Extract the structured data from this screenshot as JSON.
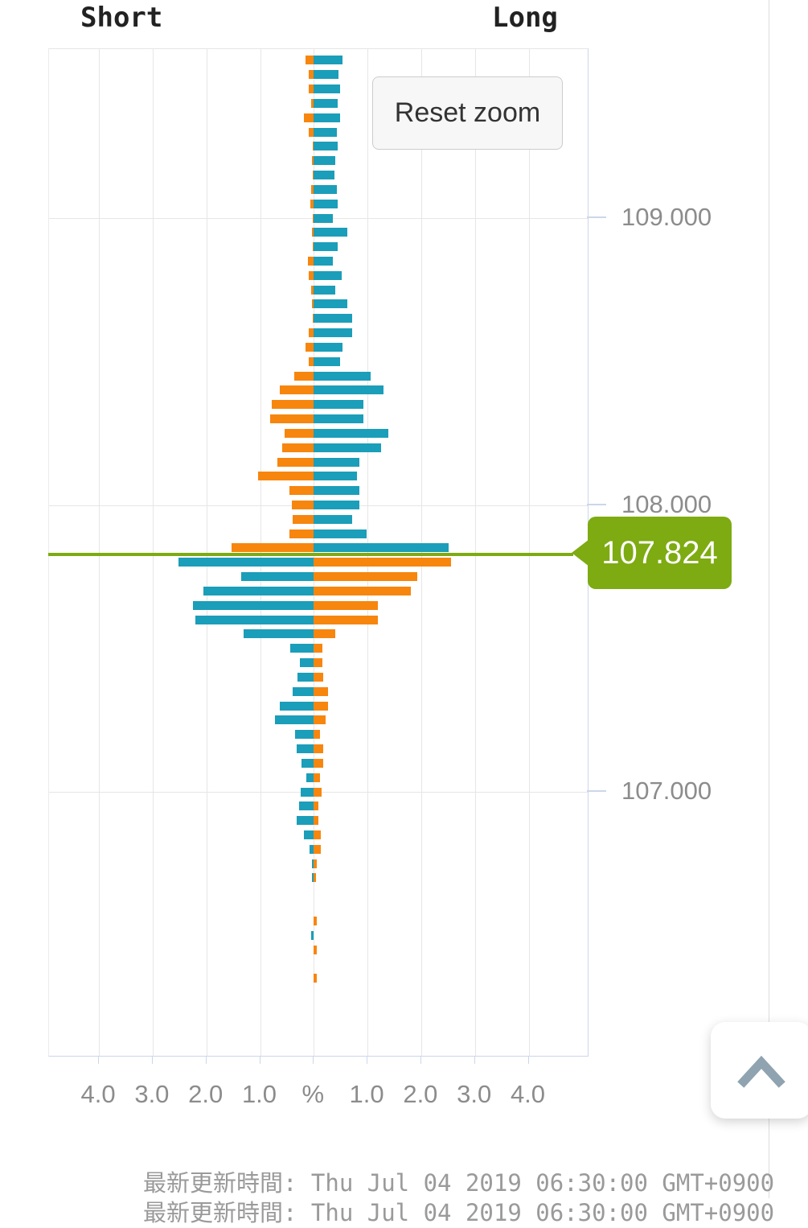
{
  "header": {
    "short_label": "Short",
    "long_label": "Long"
  },
  "buttons": {
    "reset_zoom": "Reset zoom"
  },
  "price_flag": {
    "value": "107.824"
  },
  "footer": {
    "updated_line": "最新更新時間: Thu Jul 04 2019 06:30:00 GMT+0900",
    "clipped_line": "最新更新時間: Thu Jul 04 2019 06:30:00 GMT+0900"
  },
  "colors": {
    "long_above_short_below": "#1b9eb9",
    "short_above_long_below": "#f7860e",
    "price_line_green": "#7dab11",
    "grid": "#e6e6e6",
    "axis_line": "#ccd6eb",
    "tick_label": "#8c8c8c",
    "heading_text": "#222222",
    "footer_text": "#9a9a9a",
    "button_bg": "#f7f7f7",
    "button_border": "#cccccc",
    "button_text": "#333333",
    "chevron": "#8fa3b0",
    "divider": "#dddddd",
    "flag_text": "#ffffff"
  },
  "chart_data": {
    "type": "bar",
    "orientation": "horizontal-pyramid",
    "title": "Open orders ratio (Short vs Long)",
    "current_price": 107.824,
    "x_axis": {
      "unit": "%",
      "tick_values": [
        -4,
        -3,
        -2,
        -1,
        0,
        1,
        2,
        3,
        4
      ],
      "tick_labels": [
        "4.0",
        "3.0",
        "2.0",
        "1.0",
        "%",
        "1.0",
        "2.0",
        "3.0",
        "4.0"
      ],
      "range": [
        -5,
        5
      ],
      "grid": true
    },
    "y_axis": {
      "unit": "price",
      "ticks": [
        {
          "price": 109.0,
          "label": "109.000"
        },
        {
          "price": 108.0,
          "label": "108.000"
        },
        {
          "price": 107.0,
          "label": "107.000"
        }
      ],
      "range": [
        106.3,
        109.6
      ],
      "bucket_size": 0.05,
      "grid": true
    },
    "legend": {
      "short_side": "left",
      "long_side": "right",
      "position": "top"
    },
    "buckets": [
      {
        "price": 109.55,
        "short": 0.15,
        "long": 0.54
      },
      {
        "price": 109.5,
        "short": 0.1,
        "long": 0.46
      },
      {
        "price": 109.45,
        "short": 0.1,
        "long": 0.49
      },
      {
        "price": 109.4,
        "short": 0.05,
        "long": 0.45
      },
      {
        "price": 109.35,
        "short": 0.18,
        "long": 0.49
      },
      {
        "price": 109.3,
        "short": 0.1,
        "long": 0.43
      },
      {
        "price": 109.25,
        "short": 0.02,
        "long": 0.45
      },
      {
        "price": 109.2,
        "short": 0.04,
        "long": 0.4
      },
      {
        "price": 109.15,
        "short": 0.02,
        "long": 0.38
      },
      {
        "price": 109.1,
        "short": 0.05,
        "long": 0.43
      },
      {
        "price": 109.05,
        "short": 0.07,
        "long": 0.45
      },
      {
        "price": 109.0,
        "short": 0.02,
        "long": 0.35
      },
      {
        "price": 108.95,
        "short": 0.03,
        "long": 0.62
      },
      {
        "price": 108.9,
        "short": 0.02,
        "long": 0.45
      },
      {
        "price": 108.85,
        "short": 0.11,
        "long": 0.35
      },
      {
        "price": 108.8,
        "short": 0.1,
        "long": 0.52
      },
      {
        "price": 108.75,
        "short": 0.05,
        "long": 0.4
      },
      {
        "price": 108.7,
        "short": 0.04,
        "long": 0.62
      },
      {
        "price": 108.65,
        "short": 0.02,
        "long": 0.71
      },
      {
        "price": 108.6,
        "short": 0.09,
        "long": 0.71
      },
      {
        "price": 108.55,
        "short": 0.16,
        "long": 0.53
      },
      {
        "price": 108.5,
        "short": 0.09,
        "long": 0.49
      },
      {
        "price": 108.45,
        "short": 0.37,
        "long": 1.06
      },
      {
        "price": 108.4,
        "short": 0.63,
        "long": 1.3
      },
      {
        "price": 108.35,
        "short": 0.78,
        "long": 0.93
      },
      {
        "price": 108.3,
        "short": 0.82,
        "long": 0.93
      },
      {
        "price": 108.25,
        "short": 0.54,
        "long": 1.39
      },
      {
        "price": 108.2,
        "short": 0.59,
        "long": 1.25
      },
      {
        "price": 108.15,
        "short": 0.68,
        "long": 0.85
      },
      {
        "price": 108.1,
        "short": 1.04,
        "long": 0.8
      },
      {
        "price": 108.05,
        "short": 0.45,
        "long": 0.85
      },
      {
        "price": 108.0,
        "short": 0.41,
        "long": 0.85
      },
      {
        "price": 107.95,
        "short": 0.4,
        "long": 0.71
      },
      {
        "price": 107.9,
        "short": 0.45,
        "long": 0.98
      },
      {
        "price": 107.85,
        "short": 1.53,
        "long": 2.51
      },
      {
        "price": 107.8,
        "short": 2.52,
        "long": 2.56
      },
      {
        "price": 107.75,
        "short": 1.35,
        "long": 1.92
      },
      {
        "price": 107.7,
        "short": 2.06,
        "long": 1.8
      },
      {
        "price": 107.65,
        "short": 2.25,
        "long": 1.2
      },
      {
        "price": 107.6,
        "short": 2.2,
        "long": 1.19
      },
      {
        "price": 107.55,
        "short": 1.3,
        "long": 0.4
      },
      {
        "price": 107.5,
        "short": 0.44,
        "long": 0.16
      },
      {
        "price": 107.45,
        "short": 0.26,
        "long": 0.16
      },
      {
        "price": 107.4,
        "short": 0.31,
        "long": 0.17
      },
      {
        "price": 107.35,
        "short": 0.4,
        "long": 0.26
      },
      {
        "price": 107.3,
        "short": 0.63,
        "long": 0.26
      },
      {
        "price": 107.25,
        "short": 0.73,
        "long": 0.22
      },
      {
        "price": 107.2,
        "short": 0.35,
        "long": 0.11
      },
      {
        "price": 107.15,
        "short": 0.32,
        "long": 0.17
      },
      {
        "price": 107.1,
        "short": 0.23,
        "long": 0.17
      },
      {
        "price": 107.05,
        "short": 0.14,
        "long": 0.11
      },
      {
        "price": 107.0,
        "short": 0.24,
        "long": 0.14
      },
      {
        "price": 106.95,
        "short": 0.27,
        "long": 0.09
      },
      {
        "price": 106.9,
        "short": 0.32,
        "long": 0.09
      },
      {
        "price": 106.85,
        "short": 0.18,
        "long": 0.13
      },
      {
        "price": 106.8,
        "short": 0.08,
        "long": 0.13
      },
      {
        "price": 106.75,
        "short": 0.04,
        "long": 0.05
      },
      {
        "price": 106.7,
        "short": 0.04,
        "long": 0.04
      },
      {
        "price": 106.65,
        "short": 0,
        "long": 0
      },
      {
        "price": 106.6,
        "short": 0,
        "long": 0
      },
      {
        "price": 106.55,
        "short": 0,
        "long": 0.05
      },
      {
        "price": 106.5,
        "short": 0.05,
        "long": 0
      },
      {
        "price": 106.45,
        "short": 0,
        "long": 0.05
      },
      {
        "price": 106.4,
        "short": 0,
        "long": 0
      },
      {
        "price": 106.35,
        "short": 0,
        "long": 0.05
      }
    ]
  }
}
